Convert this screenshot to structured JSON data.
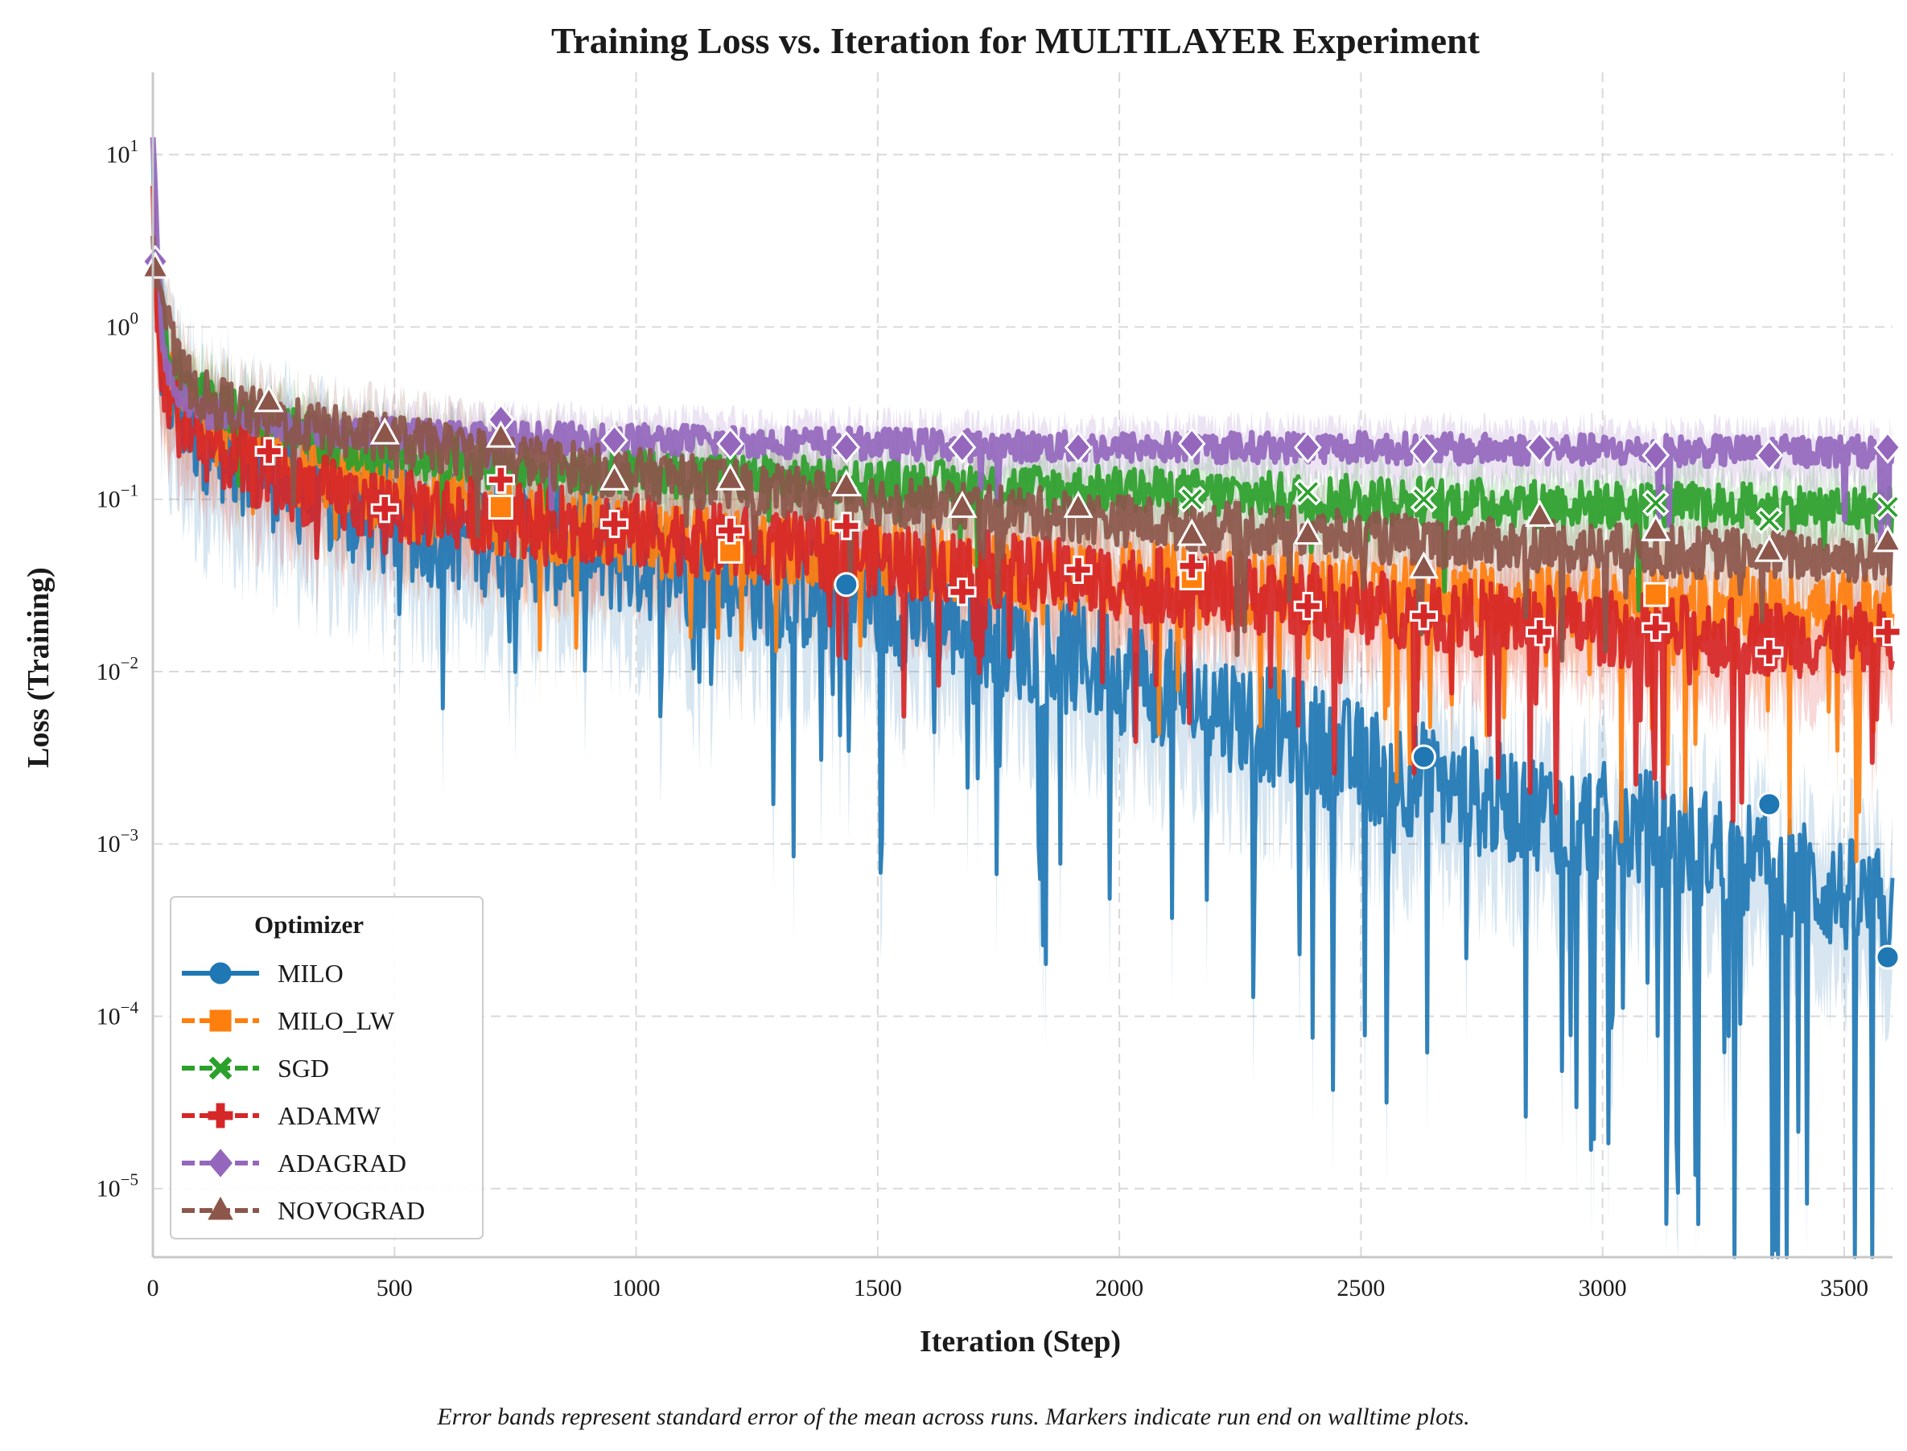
{
  "chart_data": {
    "type": "line",
    "title": "Training Loss vs. Iteration for MULTILAYER Experiment",
    "xlabel": "Iteration (Step)",
    "ylabel": "Loss (Training)",
    "caption": "Error bands represent standard error of the mean across runs. Markers indicate run end on walltime plots.",
    "y_scale": "log",
    "xlim": [
      0,
      3600
    ],
    "ylim": [
      4e-06,
      30
    ],
    "x_ticks": [
      "0",
      "500",
      "1000",
      "1500",
      "2000",
      "2500",
      "3000",
      "3500"
    ],
    "x_tick_values": [
      0,
      500,
      1000,
      1500,
      2000,
      2500,
      3000,
      3500
    ],
    "y_ticks": [
      {
        "base": "10",
        "exp": "1",
        "value": 10
      },
      {
        "base": "10",
        "exp": "0",
        "value": 1
      },
      {
        "base": "10",
        "exp": "−1",
        "value": 0.1
      },
      {
        "base": "10",
        "exp": "−2",
        "value": 0.01
      },
      {
        "base": "10",
        "exp": "−3",
        "value": 0.001
      },
      {
        "base": "10",
        "exp": "−4",
        "value": 0.0001
      },
      {
        "base": "10",
        "exp": "−5",
        "value": 1e-05
      }
    ],
    "grid": true,
    "legend": {
      "title": "Optimizer",
      "placement": "lower-left",
      "entries": [
        "MILO",
        "MILO_LW",
        "SGD",
        "ADAMW",
        "ADAGRAD",
        "NOVOGRAD"
      ]
    },
    "series": [
      {
        "name": "MILO",
        "color": "#1f77b4",
        "marker": "circle",
        "x": [
          0,
          10,
          25,
          50,
          100,
          200,
          300,
          400,
          500,
          700,
          900,
          1100,
          1300,
          1500,
          1700,
          1900,
          2100,
          2300,
          2500,
          2700,
          2900,
          3100,
          3300,
          3500,
          3600
        ],
        "y": [
          8,
          1.0,
          0.5,
          0.35,
          0.25,
          0.17,
          0.12,
          0.09,
          0.075,
          0.06,
          0.05,
          0.04,
          0.03,
          0.025,
          0.018,
          0.012,
          0.008,
          0.005,
          0.003,
          0.002,
          0.0015,
          0.0012,
          0.0008,
          0.0005,
          0.0004
        ],
        "markers": [
          {
            "x": 1435,
            "y": 0.032
          },
          {
            "x": 2630,
            "y": 0.0032
          },
          {
            "x": 3345,
            "y": 0.0017
          },
          {
            "x": 3590,
            "y": 0.00022
          }
        ]
      },
      {
        "name": "MILO_LW",
        "color": "#ff7f0e",
        "marker": "square",
        "x": [
          0,
          10,
          25,
          50,
          100,
          200,
          300,
          400,
          500,
          700,
          900,
          1100,
          1300,
          1500,
          1700,
          1900,
          2100,
          2300,
          2500,
          2700,
          2900,
          3100,
          3300,
          3500,
          3600
        ],
        "y": [
          6,
          1.2,
          0.55,
          0.38,
          0.28,
          0.2,
          0.15,
          0.12,
          0.1,
          0.08,
          0.065,
          0.055,
          0.048,
          0.045,
          0.04,
          0.036,
          0.033,
          0.031,
          0.029,
          0.027,
          0.026,
          0.025,
          0.024,
          0.023,
          0.022
        ],
        "markers": [
          {
            "x": 720,
            "y": 0.09
          },
          {
            "x": 1195,
            "y": 0.05
          },
          {
            "x": 2150,
            "y": 0.035
          },
          {
            "x": 3110,
            "y": 0.028
          }
        ]
      },
      {
        "name": "SGD",
        "color": "#2ca02c",
        "marker": "x",
        "x": [
          0,
          10,
          25,
          50,
          100,
          200,
          300,
          400,
          500,
          700,
          900,
          1100,
          1300,
          1500,
          1700,
          1900,
          2100,
          2300,
          2500,
          2700,
          2900,
          3100,
          3300,
          3500,
          3600
        ],
        "y": [
          3,
          2.0,
          0.9,
          0.55,
          0.4,
          0.3,
          0.24,
          0.2,
          0.18,
          0.16,
          0.15,
          0.14,
          0.13,
          0.125,
          0.12,
          0.115,
          0.11,
          0.105,
          0.1,
          0.097,
          0.094,
          0.092,
          0.09,
          0.088,
          0.087
        ],
        "markers": [
          {
            "x": 2150,
            "y": 0.1
          },
          {
            "x": 2390,
            "y": 0.11
          },
          {
            "x": 2630,
            "y": 0.1
          },
          {
            "x": 3110,
            "y": 0.095
          },
          {
            "x": 3345,
            "y": 0.075
          },
          {
            "x": 3590,
            "y": 0.09
          }
        ]
      },
      {
        "name": "ADAMW",
        "color": "#d62728",
        "marker": "plus",
        "x": [
          0,
          10,
          25,
          50,
          100,
          200,
          300,
          400,
          500,
          700,
          900,
          1100,
          1300,
          1500,
          1700,
          1900,
          2100,
          2300,
          2500,
          2700,
          2900,
          3100,
          3300,
          3500,
          3600
        ],
        "y": [
          5,
          0.9,
          0.45,
          0.3,
          0.22,
          0.15,
          0.12,
          0.1,
          0.09,
          0.08,
          0.07,
          0.06,
          0.052,
          0.045,
          0.04,
          0.035,
          0.031,
          0.027,
          0.024,
          0.021,
          0.019,
          0.017,
          0.016,
          0.015,
          0.015
        ],
        "markers": [
          {
            "x": 240,
            "y": 0.19
          },
          {
            "x": 480,
            "y": 0.088
          },
          {
            "x": 720,
            "y": 0.13
          },
          {
            "x": 955,
            "y": 0.072
          },
          {
            "x": 1195,
            "y": 0.066
          },
          {
            "x": 1435,
            "y": 0.07
          },
          {
            "x": 1675,
            "y": 0.029
          },
          {
            "x": 1915,
            "y": 0.039
          },
          {
            "x": 2150,
            "y": 0.041
          },
          {
            "x": 2390,
            "y": 0.024
          },
          {
            "x": 2630,
            "y": 0.021
          },
          {
            "x": 2870,
            "y": 0.017
          },
          {
            "x": 3110,
            "y": 0.018
          },
          {
            "x": 3345,
            "y": 0.013
          },
          {
            "x": 3590,
            "y": 0.017
          }
        ]
      },
      {
        "name": "ADAGRAD",
        "color": "#9467bd",
        "marker": "diamond",
        "x": [
          0,
          10,
          25,
          50,
          100,
          200,
          300,
          400,
          500,
          700,
          900,
          1100,
          1300,
          1500,
          1700,
          1900,
          2100,
          2300,
          2500,
          2700,
          2900,
          3100,
          3300,
          3500,
          3600
        ],
        "y": [
          13,
          2.2,
          0.6,
          0.4,
          0.32,
          0.28,
          0.26,
          0.25,
          0.24,
          0.23,
          0.225,
          0.22,
          0.215,
          0.21,
          0.205,
          0.2,
          0.2,
          0.2,
          0.2,
          0.195,
          0.195,
          0.19,
          0.19,
          0.19,
          0.19
        ],
        "markers": [
          {
            "x": 5,
            "y": 2.4
          },
          {
            "x": 720,
            "y": 0.29
          },
          {
            "x": 955,
            "y": 0.22
          },
          {
            "x": 1195,
            "y": 0.21
          },
          {
            "x": 1435,
            "y": 0.2
          },
          {
            "x": 1675,
            "y": 0.2
          },
          {
            "x": 1915,
            "y": 0.2
          },
          {
            "x": 2150,
            "y": 0.21
          },
          {
            "x": 2390,
            "y": 0.2
          },
          {
            "x": 2630,
            "y": 0.19
          },
          {
            "x": 2870,
            "y": 0.2
          },
          {
            "x": 3110,
            "y": 0.18
          },
          {
            "x": 3345,
            "y": 0.18
          },
          {
            "x": 3590,
            "y": 0.2
          }
        ]
      },
      {
        "name": "NOVOGRAD",
        "color": "#8c564b",
        "marker": "triangle",
        "x": [
          0,
          10,
          25,
          50,
          100,
          200,
          300,
          400,
          500,
          700,
          900,
          1100,
          1300,
          1500,
          1700,
          1900,
          2100,
          2300,
          2500,
          2700,
          2900,
          3100,
          3300,
          3500,
          3600
        ],
        "y": [
          2.4,
          2.0,
          1.2,
          0.6,
          0.4,
          0.32,
          0.27,
          0.24,
          0.22,
          0.18,
          0.15,
          0.13,
          0.11,
          0.1,
          0.09,
          0.08,
          0.072,
          0.066,
          0.06,
          0.056,
          0.053,
          0.05,
          0.048,
          0.046,
          0.045
        ],
        "markers": [
          {
            "x": 5,
            "y": 2.2
          },
          {
            "x": 240,
            "y": 0.37
          },
          {
            "x": 480,
            "y": 0.24
          },
          {
            "x": 720,
            "y": 0.23
          },
          {
            "x": 955,
            "y": 0.13
          },
          {
            "x": 1195,
            "y": 0.13
          },
          {
            "x": 1435,
            "y": 0.12
          },
          {
            "x": 1675,
            "y": 0.09
          },
          {
            "x": 1915,
            "y": 0.09
          },
          {
            "x": 2150,
            "y": 0.062
          },
          {
            "x": 2390,
            "y": 0.063
          },
          {
            "x": 2630,
            "y": 0.04
          },
          {
            "x": 2870,
            "y": 0.08
          },
          {
            "x": 3110,
            "y": 0.066
          },
          {
            "x": 3345,
            "y": 0.05
          },
          {
            "x": 3590,
            "y": 0.057
          }
        ]
      }
    ]
  }
}
